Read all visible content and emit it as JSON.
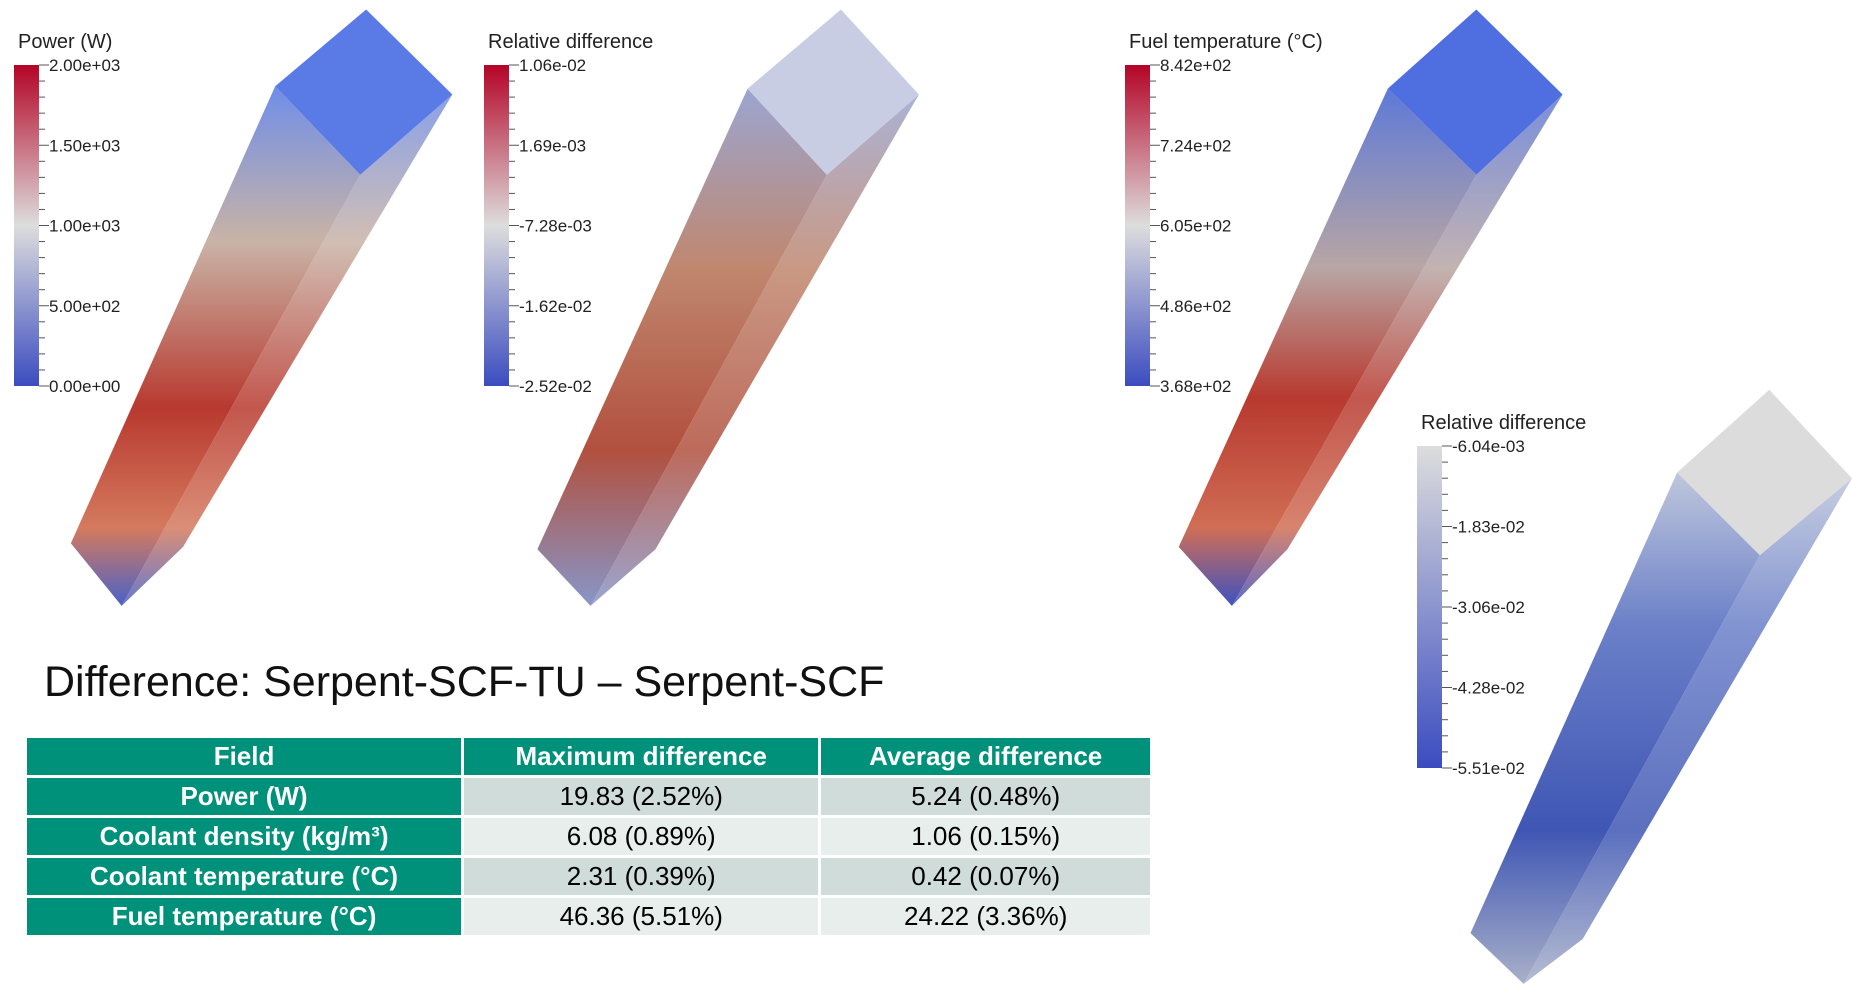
{
  "colorbars": [
    {
      "title": "Power (W)",
      "labels": [
        "2.00e+03",
        "1.50e+03",
        "1.00e+03",
        "5.00e+02",
        "0.00e+00"
      ]
    },
    {
      "title": "Relative difference",
      "labels": [
        "1.06e-02",
        "1.69e-03",
        "-7.28e-03",
        "-1.62e-02",
        "-2.52e-02"
      ]
    },
    {
      "title": "Fuel temperature (°C)",
      "labels": [
        "8.42e+02",
        "7.24e+02",
        "6.05e+02",
        "4.86e+02",
        "3.68e+02"
      ]
    },
    {
      "title": "Relative difference",
      "labels": [
        "-6.04e-03",
        "-1.83e-02",
        "-3.06e-02",
        "-4.28e-02",
        "-5.51e-02"
      ]
    }
  ],
  "heading": "Difference: Serpent-SCF-TU – Serpent-SCF",
  "table": {
    "header": [
      "Field",
      "Maximum difference",
      "Average difference"
    ],
    "rows": [
      [
        "Power (W)",
        "19.83 (2.52%)",
        "5.24 (0.48%)"
      ],
      [
        "Coolant density (kg/m³)",
        "6.08 (0.89%)",
        "1.06 (0.15%)"
      ],
      [
        "Coolant temperature (°C)",
        "2.31 (0.39%)",
        "0.42 (0.07%)"
      ],
      [
        "Fuel temperature (°C)",
        "46.36 (5.51%)",
        "24.22 (3.36%)"
      ]
    ]
  }
}
